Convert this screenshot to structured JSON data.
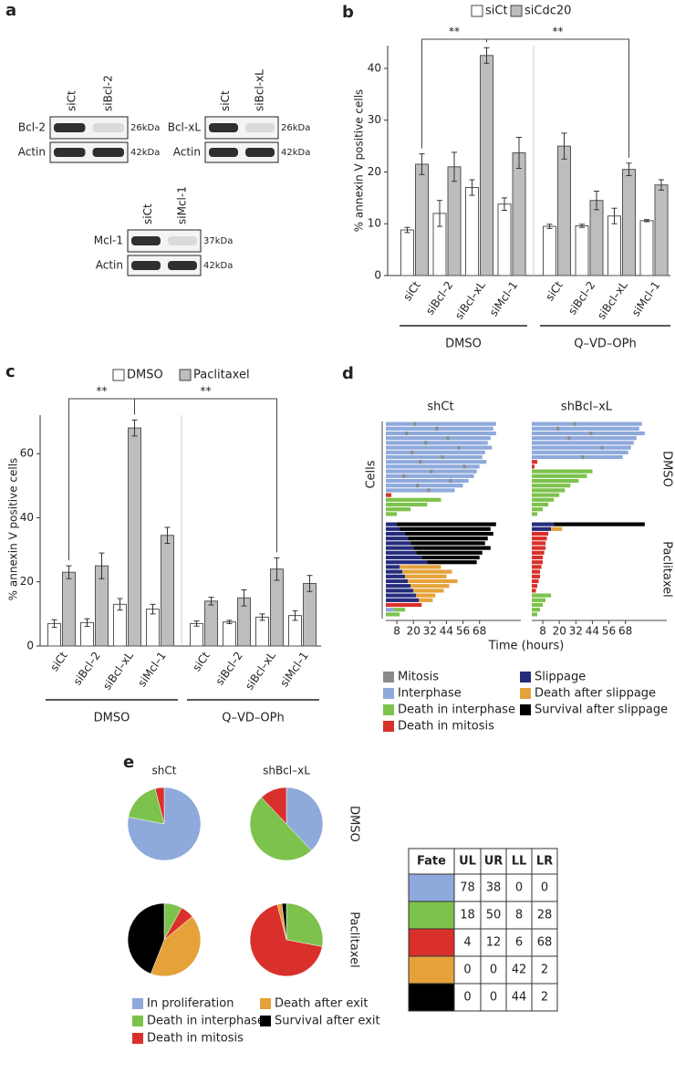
{
  "blots": {
    "label": "a",
    "items": [
      {
        "lanes": [
          "siCt",
          "siBcl-2"
        ],
        "bands": [
          {
            "name": "Bcl-2",
            "size": "26kDa"
          },
          {
            "name": "Actin",
            "size": "42kDa"
          }
        ]
      },
      {
        "lanes": [
          "siCt",
          "siBcl-xL"
        ],
        "bands": [
          {
            "name": "Bcl-xL",
            "size": "26kDa"
          },
          {
            "name": "Actin",
            "size": "42kDa"
          }
        ]
      },
      {
        "lanes": [
          "siCt",
          "siMcl-1"
        ],
        "bands": [
          {
            "name": "Mcl-1",
            "size": "37kDa"
          },
          {
            "name": "Actin",
            "size": "42kDa"
          }
        ]
      }
    ]
  },
  "chart_data": [
    {
      "type": "bar",
      "label": "b",
      "ylabel": "% annexin V positive cells",
      "categories": [
        "siCt",
        "siBcl–2",
        "siBcl–xL",
        "siMcl–1",
        "siCt",
        "siBcl–2",
        "siBcl–xL",
        "siMcl–1"
      ],
      "groups": [
        "DMSO",
        "Q–VD–OPh"
      ],
      "significance": [
        "**",
        "**"
      ],
      "ylim": [
        0,
        44.4
      ],
      "yticks": [
        0,
        10,
        20,
        30,
        40
      ],
      "series": [
        {
          "name": "siCt",
          "color": "#ffffff",
          "values": [
            8.8,
            12,
            17,
            13.8,
            9.5,
            9.6,
            11.5,
            10.6
          ],
          "errors": [
            0.5,
            2.5,
            1.5,
            1.2,
            0.4,
            0.3,
            1.5,
            0.2
          ]
        },
        {
          "name": "siCdc20",
          "color": "#bdbdbd",
          "values": [
            21.5,
            21,
            42.5,
            23.7,
            25,
            14.5,
            20.5,
            17.5
          ],
          "errors": [
            2,
            2.8,
            1.5,
            3,
            2.5,
            1.8,
            1.2,
            1
          ]
        }
      ]
    },
    {
      "type": "bar",
      "label": "c",
      "ylabel": "% annexin V positive cells",
      "categories": [
        "siCt",
        "siBcl–2",
        "siBcl–xL",
        "siMcl–1",
        "siCt",
        "siBcl–2",
        "siBcl–xL",
        "siMcl–1"
      ],
      "groups": [
        "DMSO",
        "Q–VD–OPh"
      ],
      "significance": [
        "**",
        "**"
      ],
      "ylim": [
        0,
        72
      ],
      "yticks": [
        0,
        20,
        40,
        60
      ],
      "series": [
        {
          "name": "DMSO",
          "color": "#ffffff",
          "values": [
            7,
            7.3,
            13,
            11.5,
            7,
            7.5,
            9,
            9.5
          ],
          "errors": [
            1.2,
            1.2,
            1.8,
            1.5,
            0.8,
            0.5,
            1,
            1.5
          ]
        },
        {
          "name": "Paclitaxel",
          "color": "#bdbdbd",
          "values": [
            23,
            25,
            68,
            34.5,
            14,
            15,
            24,
            19.5
          ],
          "errors": [
            2,
            4,
            2.5,
            2.5,
            1.2,
            2.5,
            3.5,
            2.5
          ]
        }
      ]
    },
    {
      "type": "timeline",
      "label": "d",
      "columns": [
        "shCt",
        "shBcl–xL"
      ],
      "rows": [
        "DMSO",
        "Paclitaxel"
      ],
      "ylabel": "Cells",
      "xlabel": "Time (hours)",
      "xlim": [
        0,
        98
      ],
      "xticks": [
        8,
        20,
        32,
        44,
        56,
        68
      ],
      "states": [
        {
          "name": "Mitosis",
          "color": "#8a8a8a"
        },
        {
          "name": "Interphase",
          "color": "#8ea9db"
        },
        {
          "name": "Death in interphase",
          "color": "#7dc24c"
        },
        {
          "name": "Death in mitosis",
          "color": "#d9302c"
        },
        {
          "name": "Slippage",
          "color": "#262c7c"
        },
        {
          "name": "Death after slippage",
          "color": "#e5a23a"
        },
        {
          "name": "Survival after slippage",
          "color": "#000000"
        }
      ],
      "panels": [
        [
          [
            [
              1,
              0,
              80
            ],
            [
              0,
              20,
              22
            ]
          ],
          [
            [
              1,
              0,
              78
            ],
            [
              0,
              36,
              38
            ]
          ],
          [
            [
              1,
              0,
              80
            ],
            [
              0,
              14,
              16
            ]
          ],
          [
            [
              1,
              0,
              76
            ],
            [
              0,
              44,
              46
            ]
          ],
          [
            [
              1,
              0,
              74
            ],
            [
              0,
              28,
              30
            ]
          ],
          [
            [
              1,
              0,
              77
            ],
            [
              0,
              52,
              54
            ]
          ],
          [
            [
              1,
              0,
              72
            ],
            [
              0,
              18,
              20
            ]
          ],
          [
            [
              1,
              0,
              70
            ],
            [
              0,
              40,
              42
            ]
          ],
          [
            [
              1,
              0,
              73
            ],
            [
              0,
              24,
              26
            ]
          ],
          [
            [
              1,
              0,
              68
            ],
            [
              0,
              56,
              58
            ]
          ],
          [
            [
              1,
              0,
              66
            ],
            [
              0,
              32,
              34
            ]
          ],
          [
            [
              1,
              0,
              64
            ],
            [
              0,
              12,
              14
            ]
          ],
          [
            [
              1,
              0,
              60
            ],
            [
              0,
              46,
              48
            ]
          ],
          [
            [
              1,
              0,
              56
            ],
            [
              0,
              22,
              24
            ]
          ],
          [
            [
              1,
              0,
              50
            ],
            [
              0,
              30,
              32
            ]
          ],
          [
            [
              3,
              0,
              4
            ]
          ],
          [
            [
              2,
              0,
              40
            ]
          ],
          [
            [
              2,
              0,
              30
            ]
          ],
          [
            [
              2,
              0,
              18
            ]
          ],
          [
            [
              2,
              0,
              8
            ]
          ]
        ],
        [
          [
            [
              1,
              0,
              80
            ],
            [
              0,
              30,
              32
            ]
          ],
          [
            [
              1,
              0,
              78
            ],
            [
              0,
              18,
              20
            ]
          ],
          [
            [
              1,
              0,
              82
            ],
            [
              0,
              42,
              44
            ]
          ],
          [
            [
              1,
              0,
              76
            ],
            [
              0,
              26,
              28
            ]
          ],
          [
            [
              1,
              0,
              74
            ]
          ],
          [
            [
              1,
              0,
              72
            ],
            [
              0,
              50,
              52
            ]
          ],
          [
            [
              1,
              0,
              70
            ]
          ],
          [
            [
              1,
              0,
              66
            ],
            [
              0,
              36,
              38
            ]
          ],
          [
            [
              3,
              0,
              4
            ]
          ],
          [
            [
              3,
              0,
              2
            ]
          ],
          [
            [
              2,
              0,
              44
            ]
          ],
          [
            [
              2,
              0,
              40
            ]
          ],
          [
            [
              2,
              0,
              34
            ]
          ],
          [
            [
              2,
              0,
              28
            ]
          ],
          [
            [
              2,
              0,
              24
            ]
          ],
          [
            [
              2,
              0,
              20
            ]
          ],
          [
            [
              2,
              0,
              16
            ]
          ],
          [
            [
              2,
              0,
              12
            ]
          ],
          [
            [
              2,
              0,
              8
            ]
          ],
          [
            [
              2,
              0,
              4
            ]
          ]
        ],
        [
          [
            [
              4,
              0,
              8
            ],
            [
              6,
              8,
              80
            ]
          ],
          [
            [
              4,
              0,
              10
            ],
            [
              6,
              10,
              76
            ]
          ],
          [
            [
              4,
              0,
              14
            ],
            [
              6,
              14,
              78
            ]
          ],
          [
            [
              4,
              0,
              16
            ],
            [
              6,
              16,
              74
            ]
          ],
          [
            [
              4,
              0,
              18
            ],
            [
              6,
              18,
              72
            ]
          ],
          [
            [
              4,
              0,
              20
            ],
            [
              6,
              20,
              76
            ]
          ],
          [
            [
              4,
              0,
              22
            ],
            [
              6,
              22,
              70
            ]
          ],
          [
            [
              4,
              0,
              26
            ],
            [
              6,
              26,
              68
            ]
          ],
          [
            [
              4,
              0,
              30
            ],
            [
              6,
              30,
              66
            ]
          ],
          [
            [
              4,
              0,
              10
            ],
            [
              5,
              10,
              40
            ]
          ],
          [
            [
              4,
              0,
              12
            ],
            [
              5,
              12,
              48
            ]
          ],
          [
            [
              4,
              0,
              14
            ],
            [
              5,
              14,
              44
            ]
          ],
          [
            [
              4,
              0,
              16
            ],
            [
              5,
              16,
              52
            ]
          ],
          [
            [
              4,
              0,
              18
            ],
            [
              5,
              18,
              46
            ]
          ],
          [
            [
              4,
              0,
              20
            ],
            [
              5,
              20,
              42
            ]
          ],
          [
            [
              4,
              0,
              22
            ],
            [
              5,
              22,
              36
            ]
          ],
          [
            [
              4,
              0,
              24
            ],
            [
              5,
              24,
              34
            ]
          ],
          [
            [
              3,
              0,
              26
            ]
          ],
          [
            [
              1,
              0,
              6
            ],
            [
              2,
              6,
              14
            ]
          ],
          [
            [
              2,
              0,
              10
            ]
          ]
        ],
        [
          [
            [
              4,
              0,
              16
            ],
            [
              6,
              16,
              82
            ]
          ],
          [
            [
              4,
              0,
              14
            ],
            [
              5,
              14,
              22
            ]
          ],
          [
            [
              3,
              0,
              12
            ]
          ],
          [
            [
              3,
              0,
              11
            ]
          ],
          [
            [
              3,
              0,
              10
            ]
          ],
          [
            [
              3,
              0,
              10
            ]
          ],
          [
            [
              3,
              0,
              9
            ]
          ],
          [
            [
              3,
              0,
              8
            ]
          ],
          [
            [
              3,
              0,
              8
            ]
          ],
          [
            [
              3,
              0,
              7
            ]
          ],
          [
            [
              3,
              0,
              6
            ]
          ],
          [
            [
              3,
              0,
              6
            ]
          ],
          [
            [
              3,
              0,
              5
            ]
          ],
          [
            [
              3,
              0,
              4
            ]
          ],
          [
            [
              3,
              0,
              3
            ]
          ],
          [
            [
              2,
              0,
              14
            ]
          ],
          [
            [
              2,
              0,
              10
            ]
          ],
          [
            [
              2,
              0,
              8
            ]
          ],
          [
            [
              2,
              0,
              6
            ]
          ],
          [
            [
              2,
              0,
              4
            ]
          ]
        ]
      ]
    },
    {
      "type": "pie",
      "label": "e",
      "columns": [
        "shCt",
        "shBcl–xL"
      ],
      "rows": [
        "DMSO",
        "Paclitaxel"
      ],
      "categories": [
        "In proliferation",
        "Death in interphase",
        "Death in mitosis",
        "Death after exit",
        "Survival after exit"
      ],
      "colors": [
        "#8ea9db",
        "#7dc24c",
        "#d9302c",
        "#e5a23a",
        "#000000"
      ],
      "table": {
        "header": [
          "Fate",
          "UL",
          "UR",
          "LL",
          "LR"
        ],
        "rows": [
          [
            78,
            38,
            0,
            0
          ],
          [
            18,
            50,
            8,
            28
          ],
          [
            4,
            12,
            6,
            68
          ],
          [
            0,
            0,
            42,
            2
          ],
          [
            0,
            0,
            44,
            2
          ]
        ]
      }
    }
  ]
}
